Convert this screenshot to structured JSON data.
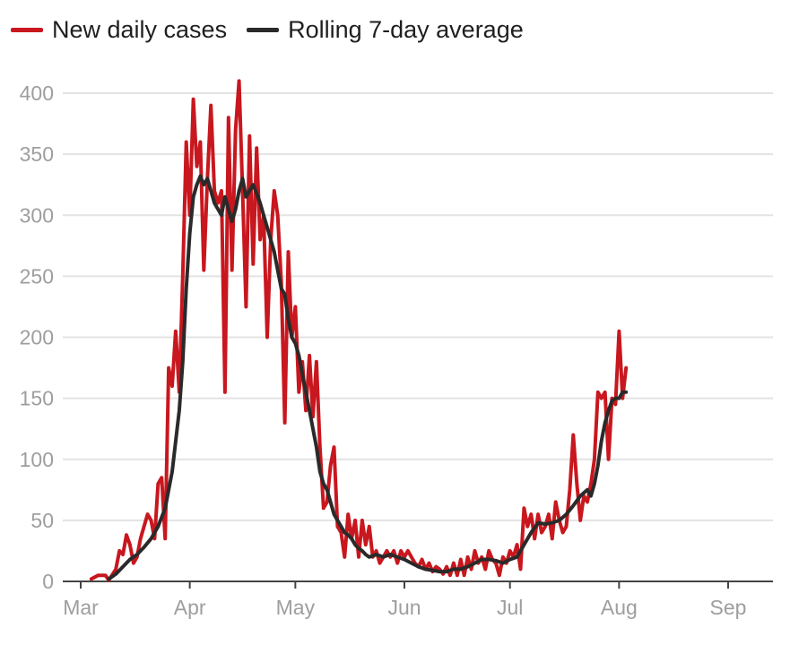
{
  "chart_data": {
    "type": "line",
    "title": "",
    "xlabel": "",
    "ylabel": "",
    "ylim": [
      0,
      420
    ],
    "yticks": [
      0,
      50,
      100,
      150,
      200,
      250,
      300,
      350,
      400
    ],
    "ytick_labels": [
      "0",
      "50",
      "100",
      "150",
      "200",
      "250",
      "300",
      "350",
      "400"
    ],
    "x_start": "2020-03-01",
    "xlim_days": [
      0,
      195
    ],
    "xtick_labels": [
      "Mar",
      "Apr",
      "May",
      "Jun",
      "Jul",
      "Aug",
      "Sep"
    ],
    "xtick_days": [
      0,
      31,
      61,
      92,
      122,
      153,
      184
    ],
    "grid": true,
    "legend_position": "top-left",
    "series": [
      {
        "name": "New daily cases",
        "color": "#c8171e",
        "points": [
          [
            3,
            2
          ],
          [
            5,
            5
          ],
          [
            7,
            5
          ],
          [
            8,
            1
          ],
          [
            10,
            10
          ],
          [
            11,
            25
          ],
          [
            12,
            22
          ],
          [
            13,
            38
          ],
          [
            14,
            30
          ],
          [
            15,
            15
          ],
          [
            16,
            20
          ],
          [
            17,
            35
          ],
          [
            18,
            45
          ],
          [
            19,
            55
          ],
          [
            20,
            50
          ],
          [
            21,
            35
          ],
          [
            22,
            80
          ],
          [
            23,
            85
          ],
          [
            24,
            35
          ],
          [
            25,
            175
          ],
          [
            26,
            160
          ],
          [
            27,
            205
          ],
          [
            28,
            155
          ],
          [
            29,
            250
          ],
          [
            30,
            360
          ],
          [
            31,
            300
          ],
          [
            32,
            395
          ],
          [
            33,
            340
          ],
          [
            34,
            360
          ],
          [
            35,
            255
          ],
          [
            36,
            330
          ],
          [
            37,
            390
          ],
          [
            38,
            320
          ],
          [
            39,
            310
          ],
          [
            40,
            320
          ],
          [
            41,
            155
          ],
          [
            42,
            380
          ],
          [
            43,
            255
          ],
          [
            44,
            370
          ],
          [
            45,
            410
          ],
          [
            46,
            320
          ],
          [
            47,
            225
          ],
          [
            48,
            365
          ],
          [
            49,
            260
          ],
          [
            50,
            355
          ],
          [
            51,
            280
          ],
          [
            52,
            300
          ],
          [
            53,
            200
          ],
          [
            54,
            280
          ],
          [
            55,
            320
          ],
          [
            56,
            300
          ],
          [
            57,
            245
          ],
          [
            58,
            130
          ],
          [
            59,
            270
          ],
          [
            60,
            200
          ],
          [
            61,
            225
          ],
          [
            62,
            155
          ],
          [
            63,
            180
          ],
          [
            64,
            140
          ],
          [
            65,
            185
          ],
          [
            66,
            135
          ],
          [
            67,
            180
          ],
          [
            68,
            110
          ],
          [
            69,
            60
          ],
          [
            70,
            65
          ],
          [
            71,
            95
          ],
          [
            72,
            110
          ],
          [
            73,
            45
          ],
          [
            74,
            40
          ],
          [
            75,
            20
          ],
          [
            76,
            55
          ],
          [
            77,
            35
          ],
          [
            78,
            50
          ],
          [
            79,
            20
          ],
          [
            80,
            50
          ],
          [
            81,
            30
          ],
          [
            82,
            45
          ],
          [
            83,
            20
          ],
          [
            84,
            25
          ],
          [
            85,
            15
          ],
          [
            86,
            20
          ],
          [
            87,
            25
          ],
          [
            88,
            20
          ],
          [
            89,
            25
          ],
          [
            90,
            15
          ],
          [
            91,
            25
          ],
          [
            92,
            20
          ],
          [
            93,
            25
          ],
          [
            94,
            20
          ],
          [
            95,
            15
          ],
          [
            96,
            12
          ],
          [
            97,
            18
          ],
          [
            98,
            10
          ],
          [
            99,
            15
          ],
          [
            100,
            8
          ],
          [
            101,
            12
          ],
          [
            102,
            10
          ],
          [
            103,
            6
          ],
          [
            104,
            12
          ],
          [
            105,
            5
          ],
          [
            106,
            15
          ],
          [
            107,
            5
          ],
          [
            108,
            18
          ],
          [
            109,
            5
          ],
          [
            110,
            20
          ],
          [
            111,
            10
          ],
          [
            112,
            25
          ],
          [
            113,
            15
          ],
          [
            114,
            20
          ],
          [
            115,
            10
          ],
          [
            116,
            25
          ],
          [
            117,
            18
          ],
          [
            118,
            15
          ],
          [
            119,
            5
          ],
          [
            120,
            20
          ],
          [
            121,
            15
          ],
          [
            122,
            25
          ],
          [
            123,
            20
          ],
          [
            124,
            30
          ],
          [
            125,
            10
          ],
          [
            126,
            60
          ],
          [
            127,
            45
          ],
          [
            128,
            55
          ],
          [
            129,
            35
          ],
          [
            130,
            55
          ],
          [
            131,
            40
          ],
          [
            132,
            45
          ],
          [
            133,
            55
          ],
          [
            134,
            35
          ],
          [
            135,
            65
          ],
          [
            136,
            50
          ],
          [
            137,
            40
          ],
          [
            138,
            45
          ],
          [
            139,
            75
          ],
          [
            140,
            120
          ],
          [
            141,
            80
          ],
          [
            142,
            50
          ],
          [
            143,
            70
          ],
          [
            144,
            65
          ],
          [
            145,
            80
          ],
          [
            146,
            100
          ],
          [
            147,
            155
          ],
          [
            148,
            150
          ],
          [
            149,
            155
          ],
          [
            150,
            100
          ],
          [
            151,
            150
          ],
          [
            152,
            145
          ],
          [
            153,
            205
          ],
          [
            154,
            150
          ],
          [
            155,
            175
          ]
        ]
      },
      {
        "name": "Rolling 7-day average",
        "color": "#2a2a2a",
        "points": [
          [
            8,
            2
          ],
          [
            10,
            6
          ],
          [
            12,
            12
          ],
          [
            14,
            18
          ],
          [
            16,
            22
          ],
          [
            18,
            28
          ],
          [
            20,
            35
          ],
          [
            22,
            45
          ],
          [
            24,
            60
          ],
          [
            26,
            90
          ],
          [
            28,
            140
          ],
          [
            29,
            180
          ],
          [
            30,
            240
          ],
          [
            31,
            285
          ],
          [
            32,
            315
          ],
          [
            33,
            325
          ],
          [
            34,
            332
          ],
          [
            35,
            325
          ],
          [
            36,
            330
          ],
          [
            37,
            320
          ],
          [
            38,
            310
          ],
          [
            40,
            300
          ],
          [
            41,
            315
          ],
          [
            43,
            295
          ],
          [
            44,
            305
          ],
          [
            45,
            320
          ],
          [
            46,
            330
          ],
          [
            47,
            315
          ],
          [
            48,
            320
          ],
          [
            49,
            325
          ],
          [
            50,
            318
          ],
          [
            51,
            310
          ],
          [
            52,
            300
          ],
          [
            53,
            290
          ],
          [
            54,
            280
          ],
          [
            55,
            270
          ],
          [
            56,
            255
          ],
          [
            57,
            240
          ],
          [
            58,
            235
          ],
          [
            59,
            215
          ],
          [
            60,
            200
          ],
          [
            61,
            195
          ],
          [
            62,
            185
          ],
          [
            63,
            170
          ],
          [
            64,
            155
          ],
          [
            65,
            140
          ],
          [
            66,
            125
          ],
          [
            67,
            110
          ],
          [
            68,
            90
          ],
          [
            69,
            80
          ],
          [
            70,
            75
          ],
          [
            71,
            65
          ],
          [
            72,
            55
          ],
          [
            73,
            50
          ],
          [
            74,
            45
          ],
          [
            75,
            40
          ],
          [
            76,
            38
          ],
          [
            77,
            35
          ],
          [
            78,
            30
          ],
          [
            79,
            27
          ],
          [
            80,
            25
          ],
          [
            81,
            22
          ],
          [
            82,
            20
          ],
          [
            84,
            22
          ],
          [
            86,
            20
          ],
          [
            88,
            22
          ],
          [
            90,
            20
          ],
          [
            92,
            18
          ],
          [
            94,
            15
          ],
          [
            96,
            12
          ],
          [
            98,
            10
          ],
          [
            100,
            9
          ],
          [
            102,
            8
          ],
          [
            104,
            8
          ],
          [
            106,
            10
          ],
          [
            108,
            10
          ],
          [
            110,
            12
          ],
          [
            112,
            15
          ],
          [
            114,
            18
          ],
          [
            116,
            18
          ],
          [
            118,
            17
          ],
          [
            120,
            15
          ],
          [
            122,
            18
          ],
          [
            124,
            20
          ],
          [
            126,
            30
          ],
          [
            128,
            40
          ],
          [
            130,
            48
          ],
          [
            132,
            47
          ],
          [
            134,
            48
          ],
          [
            136,
            50
          ],
          [
            138,
            55
          ],
          [
            140,
            62
          ],
          [
            142,
            70
          ],
          [
            144,
            75
          ],
          [
            145,
            70
          ],
          [
            146,
            80
          ],
          [
            147,
            95
          ],
          [
            148,
            115
          ],
          [
            149,
            130
          ],
          [
            150,
            140
          ],
          [
            151,
            148
          ],
          [
            152,
            150
          ],
          [
            153,
            150
          ],
          [
            154,
            155
          ],
          [
            155,
            155
          ]
        ]
      }
    ]
  }
}
